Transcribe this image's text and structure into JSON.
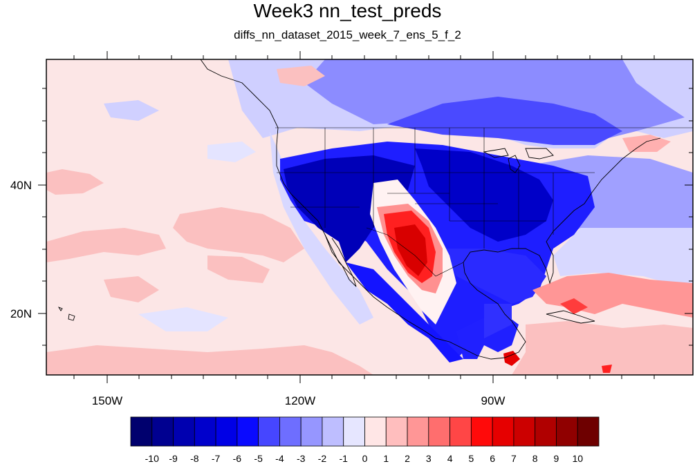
{
  "title": "Week3 nn_test_preds",
  "subtitle": "diffs_nn_dataset_2015_week_7_ens_5_f_2",
  "lon_ticks": [
    {
      "label": "150W",
      "lon": -150
    },
    {
      "label": "120W",
      "lon": -120
    },
    {
      "label": "90W",
      "lon": -90
    }
  ],
  "lat_ticks": [
    {
      "label": "40N",
      "lat": 40
    },
    {
      "label": "20N",
      "lat": 20
    }
  ],
  "colorbar": {
    "labels": [
      "-10",
      "-9",
      "-8",
      "-7",
      "-6",
      "-5",
      "-4",
      "-3",
      "-2",
      "-1",
      "0",
      "1",
      "2",
      "3",
      "4",
      "5",
      "6",
      "7",
      "8",
      "9",
      "10"
    ],
    "colors": [
      "#00006e",
      "#000090",
      "#0000b0",
      "#0000cc",
      "#0000e6",
      "#0a0aff",
      "#4646ff",
      "#6e6eff",
      "#9696ff",
      "#bebeff",
      "#e6e6ff",
      "#ffe6e6",
      "#ffbebe",
      "#ff9696",
      "#ff6e6e",
      "#ff4646",
      "#ff0a0a",
      "#e60000",
      "#cc0000",
      "#b00000",
      "#900000",
      "#6e0000"
    ]
  },
  "regions": [
    {
      "name": "background-pink",
      "color": "#fce6e6"
    },
    {
      "name": "pacific-pink-band",
      "color": "#fbc0c0"
    },
    {
      "name": "north-pacific-blue",
      "color": "#bfbfff"
    },
    {
      "name": "canada-blue",
      "color": "#6e6eff"
    },
    {
      "name": "us-west-dark-blue",
      "color": "#0000cc"
    },
    {
      "name": "southern-plains-red",
      "color": "#ff0a0a"
    },
    {
      "name": "gulf-blue",
      "color": "#2a2aff"
    },
    {
      "name": "atlantic-pink",
      "color": "#ff9696"
    },
    {
      "name": "central-america-red",
      "color": "#e60000"
    }
  ]
}
